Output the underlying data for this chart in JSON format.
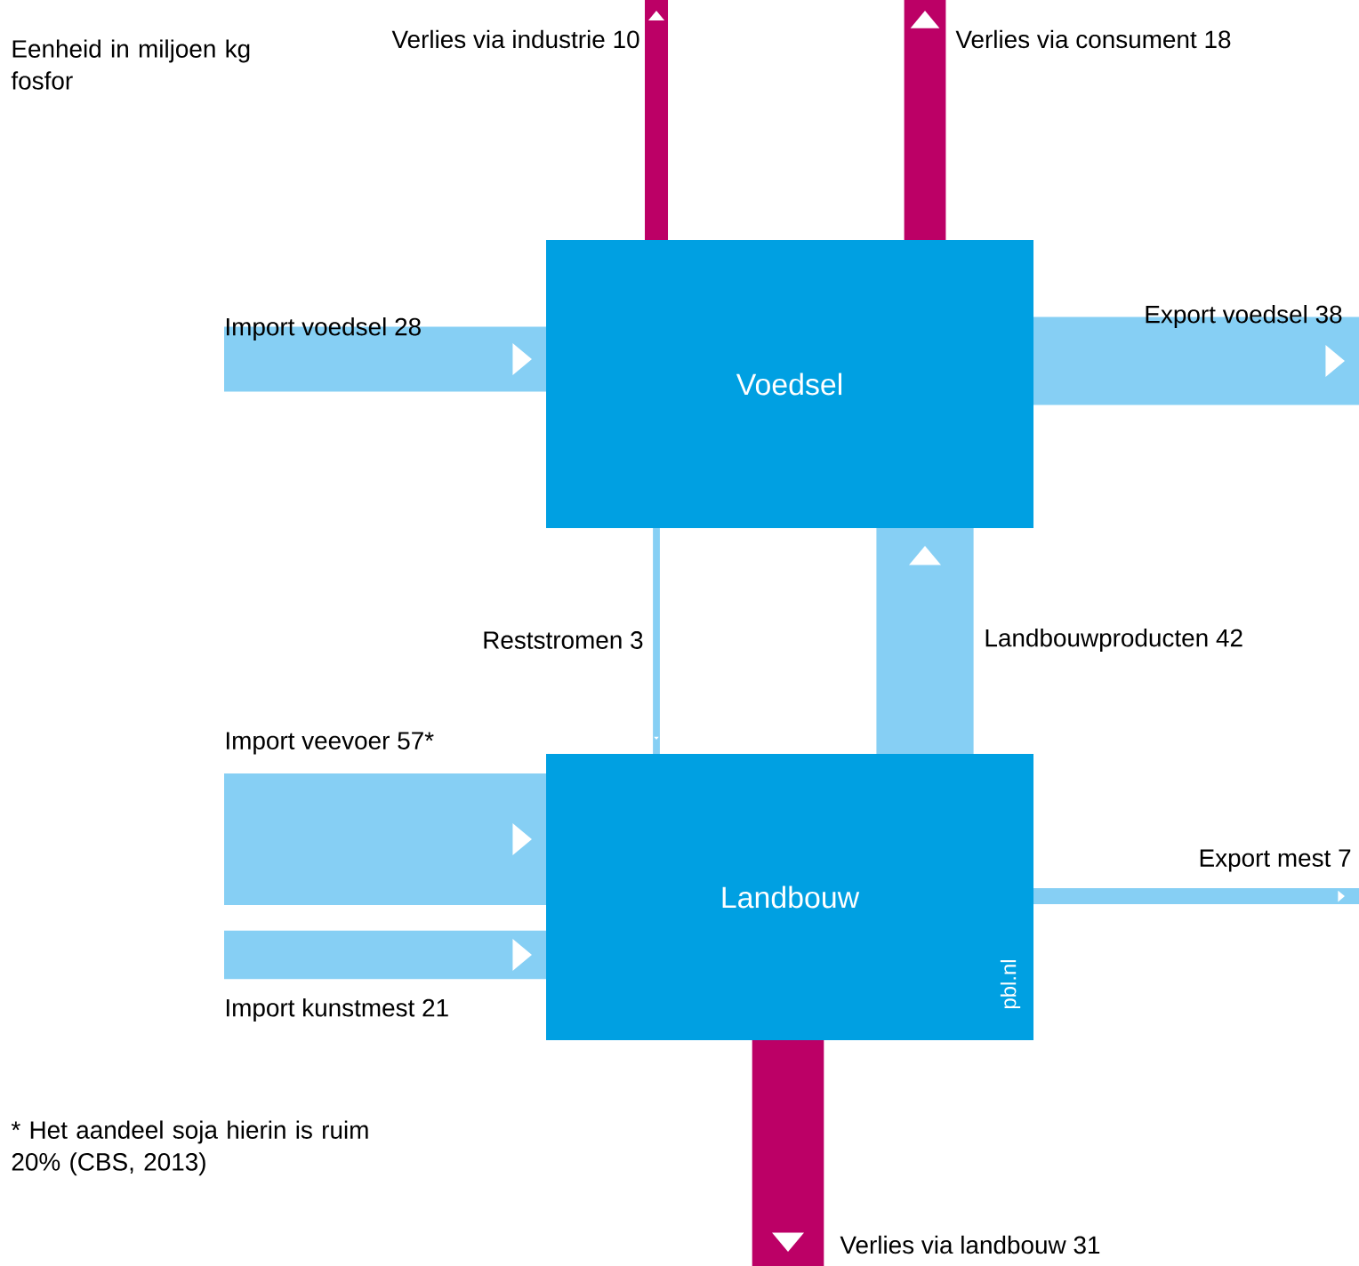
{
  "chart_data": {
    "type": "other",
    "categories": [
      "Verlies via industrie",
      "Verlies via consument",
      "Import voedsel",
      "Export voedsel",
      "Reststromen",
      "Landbouwproducten",
      "Import veevoer",
      "Export mest",
      "Import kunstmest",
      "Verlies via landbouw"
    ],
    "values": [
      10,
      18,
      28,
      38,
      3,
      42,
      57,
      7,
      21,
      31
    ],
    "value_labels": [
      "10",
      "18",
      "28",
      "38",
      "3",
      "42",
      "57*",
      "7",
      "21",
      "31"
    ],
    "colors": [
      "#bc0066",
      "#bc0066",
      "#86cff4",
      "#86cff4",
      "#86cff4",
      "#86cff4",
      "#86cff4",
      "#86cff4",
      "#86cff4",
      "#bc0066"
    ],
    "color": "#00a0e2",
    "annotations": [
      "Eenheid in miljoen kg fosfor",
      "* Het aandeel soja hierin is ruim 20% (CBS, 2013)",
      "pbl.nl",
      "Voedsel",
      "Landbouw"
    ]
  }
}
